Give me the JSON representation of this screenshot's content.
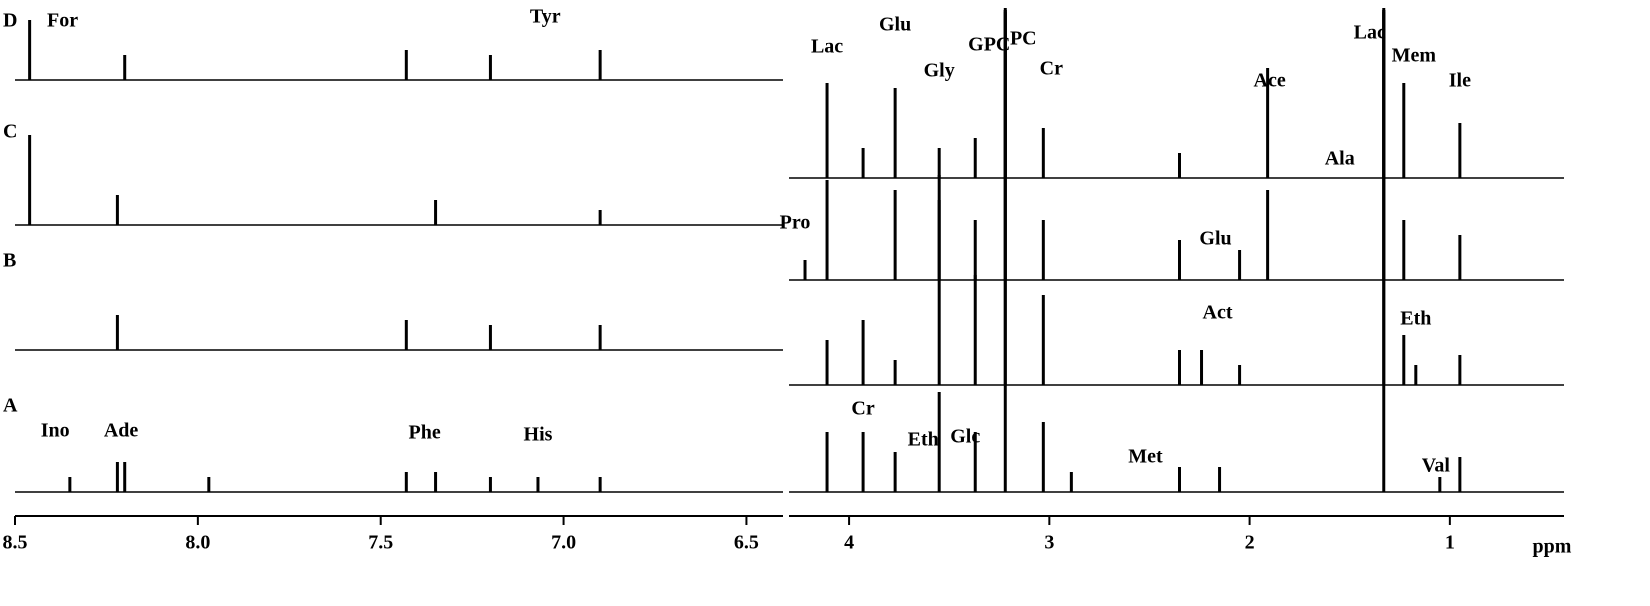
{
  "chart_data": [
    {
      "type": "stem",
      "xlim": [
        8.5,
        6.4
      ],
      "color": "#000000",
      "xticks": [
        8.5,
        {
          "value": 8,
          "label": "8.0"
        },
        7.5,
        {
          "value": 7,
          "label": "7.0"
        },
        6.5
      ],
      "series": [
        {
          "name": "D",
          "x": [
            8.46,
            8.2,
            7.43,
            7.2,
            6.9
          ],
          "values": [
            60,
            25,
            30,
            25,
            30
          ]
        },
        {
          "name": "C",
          "x": [
            8.46,
            8.22,
            7.35,
            6.9
          ],
          "values": [
            90,
            30,
            25,
            15
          ]
        },
        {
          "name": "B",
          "x": [
            8.22,
            7.43,
            7.2,
            6.9
          ],
          "values": [
            35,
            30,
            25,
            25
          ]
        },
        {
          "name": "A",
          "x": [
            8.35,
            8.22,
            8.2,
            7.97,
            7.43,
            7.35,
            7.2,
            7.07,
            6.9
          ],
          "values": [
            15,
            30,
            30,
            15,
            20,
            20,
            15,
            15,
            15
          ]
        }
      ],
      "annotations": [
        {
          "text": "For",
          "x": 8.37
        },
        {
          "text": "Tyr",
          "x": 7.05
        },
        {
          "text": "Ino",
          "x": 8.39
        },
        {
          "text": "Ade",
          "x": 8.21
        },
        {
          "text": "Phe",
          "x": 7.38
        },
        {
          "text": "His",
          "x": 7.07
        }
      ]
    },
    {
      "type": "stem",
      "xlim": [
        4.3,
        0.43
      ],
      "color": "#000000",
      "xlabel": "ppm",
      "xticks": [
        4,
        3,
        2,
        1
      ],
      "series": [
        {
          "x": [
            4.11,
            3.93,
            3.77,
            3.55,
            3.37,
            3.22,
            3.03,
            2.35,
            1.91,
            1.33,
            1.23,
            0.95
          ],
          "values": [
            95,
            30,
            90,
            30,
            40,
            170,
            50,
            25,
            110,
            170,
            95,
            55
          ]
        },
        {
          "x": [
            4.22,
            4.11,
            3.77,
            3.55,
            3.37,
            3.22,
            3.03,
            2.35,
            2.05,
            1.91,
            1.33,
            1.23,
            0.95
          ],
          "values": [
            20,
            100,
            90,
            80,
            60,
            270,
            60,
            40,
            30,
            90,
            270,
            60,
            45
          ]
        },
        {
          "x": [
            4.11,
            3.93,
            3.77,
            3.55,
            3.37,
            3.22,
            3.03,
            2.35,
            2.24,
            2.05,
            1.33,
            1.23,
            1.17,
            0.95
          ],
          "values": [
            45,
            65,
            25,
            210,
            110,
            375,
            90,
            35,
            35,
            20,
            375,
            50,
            20,
            30
          ]
        },
        {
          "x": [
            4.11,
            3.93,
            3.77,
            3.55,
            3.37,
            3.22,
            3.03,
            2.89,
            2.35,
            2.15,
            1.33,
            1.05,
            0.95
          ],
          "values": [
            60,
            60,
            40,
            100,
            60,
            480,
            70,
            20,
            25,
            25,
            480,
            15,
            35
          ]
        }
      ],
      "annotations": [
        {
          "text": "Lac",
          "x": 4.11
        },
        {
          "text": "Glu",
          "x": 3.77
        },
        {
          "text": "Gly",
          "x": 3.55
        },
        {
          "text": "GPC",
          "x": 3.3
        },
        {
          "text": "PC",
          "x": 3.13
        },
        {
          "text": "Cr",
          "x": 2.99
        },
        {
          "text": "Ace",
          "x": 1.9
        },
        {
          "text": "Lac",
          "x": 1.4
        },
        {
          "text": "Mem",
          "x": 1.18
        },
        {
          "text": "Ile",
          "x": 0.95
        },
        {
          "text": "Ala",
          "x": 1.55
        },
        {
          "text": "Pro",
          "x": 4.27
        },
        {
          "text": "Glu",
          "x": 2.17
        },
        {
          "text": "Act",
          "x": 2.16
        },
        {
          "text": "Eth",
          "x": 1.17
        },
        {
          "text": "Cr",
          "x": 3.93
        },
        {
          "text": "Eth",
          "x": 3.63
        },
        {
          "text": "Glc",
          "x": 3.42
        },
        {
          "text": "Met",
          "x": 2.52
        },
        {
          "text": "Val",
          "x": 1.07
        }
      ]
    }
  ]
}
